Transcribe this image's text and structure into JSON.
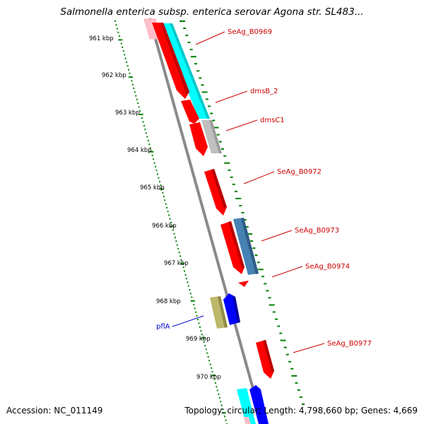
{
  "title": "Salmonella enterica subsp. enterica serovar Agona str. SL483...",
  "footer": {
    "accession": "Accession: NC_011149",
    "topology": "Topology: circular; Length: 4,798,660 bp; Genes: 4,669"
  },
  "colors": {
    "backbone": "#808080",
    "tick_green": "#008000",
    "label_red": "#cc0000",
    "label_blue": "#0000cc",
    "gene_red": "#ff0000",
    "gene_cyan": "#00ffff",
    "gene_gray": "#c0c0c0",
    "gene_steel": "#4682b4",
    "gene_olive": "#bdb76b",
    "gene_blue": "#0000ff",
    "gene_pink": "#ffc0cb"
  },
  "kbp_labels": [
    {
      "text": "961 kbp",
      "kbp": 961
    },
    {
      "text": "962 kbp",
      "kbp": 962
    },
    {
      "text": "963 kbp",
      "kbp": 963
    },
    {
      "text": "964 kbp",
      "kbp": 964
    },
    {
      "text": "965 kbp",
      "kbp": 965
    },
    {
      "text": "966 kbp",
      "kbp": 966
    },
    {
      "text": "967 kbp",
      "kbp": 967
    },
    {
      "text": "968 kbp",
      "kbp": 968
    },
    {
      "text": "969 kbp",
      "kbp": 969
    },
    {
      "text": "970 kbp",
      "kbp": 970
    }
  ],
  "gene_labels": [
    {
      "text": "SeAg_B0969",
      "color": "red"
    },
    {
      "text": "dmsB_2",
      "color": "red"
    },
    {
      "text": "dmsC1",
      "color": "red"
    },
    {
      "text": "SeAg_B0972",
      "color": "red"
    },
    {
      "text": "SeAg_B0973",
      "color": "red"
    },
    {
      "text": "SeAg_B0974",
      "color": "red"
    },
    {
      "text": "pflA",
      "color": "blue"
    },
    {
      "text": "SeAg_B0977",
      "color": "red"
    }
  ]
}
